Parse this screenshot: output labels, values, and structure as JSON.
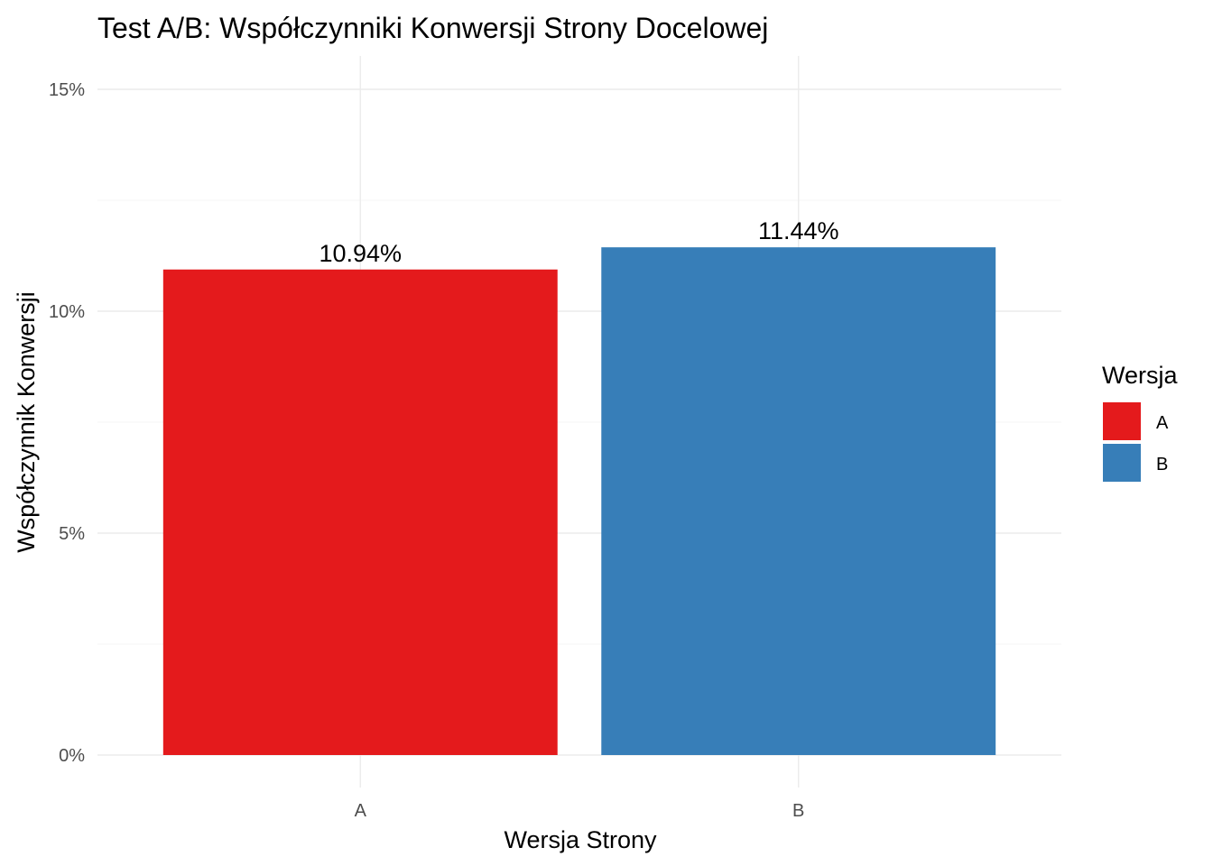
{
  "chart_data": {
    "type": "bar",
    "title": "Test A/B: Współczynniki Konwersji Strony Docelowej",
    "xlabel": "Wersja Strony",
    "ylabel": "Współczynnik Konwersji",
    "categories": [
      "A",
      "B"
    ],
    "values": [
      10.94,
      11.44
    ],
    "value_labels": [
      "10.94%",
      "11.44%"
    ],
    "colors": [
      "#e41a1c",
      "#377eb8"
    ],
    "ylim": [
      0,
      15.75
    ],
    "y_ticks": [
      0,
      5,
      10,
      15
    ],
    "y_tick_labels": [
      "0%",
      "5%",
      "10%",
      "15%"
    ],
    "y_minor_ticks": [
      2.5,
      7.5,
      12.5
    ],
    "grid": true,
    "legend": {
      "title": "Wersja",
      "position": "right",
      "entries": [
        {
          "label": "A",
          "color": "#e41a1c"
        },
        {
          "label": "B",
          "color": "#377eb8"
        }
      ]
    }
  }
}
